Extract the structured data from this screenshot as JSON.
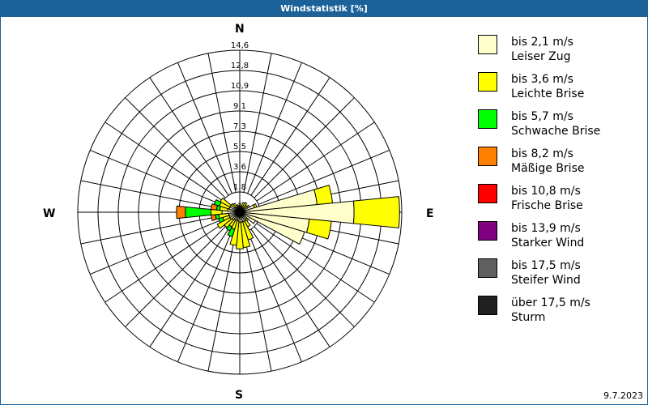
{
  "window": {
    "title": "Windstatistik [%]"
  },
  "footer": {
    "date": "9.7.2023"
  },
  "compass": {
    "n": "N",
    "e": "E",
    "s": "S",
    "w": "W"
  },
  "legend": [
    {
      "range": "bis 2,1 m/s",
      "name": "Leiser Zug",
      "color": "#ffffcc"
    },
    {
      "range": "bis 3,6 m/s",
      "name": "Leichte Brise",
      "color": "#ffff00"
    },
    {
      "range": "bis 5,7 m/s",
      "name": "Schwache Brise",
      "color": "#00ff00"
    },
    {
      "range": "bis 8,2 m/s",
      "name": "Mäßige Brise",
      "color": "#ff8000"
    },
    {
      "range": "bis 10,8 m/s",
      "name": "Frische Brise",
      "color": "#ff0000"
    },
    {
      "range": "bis 13,9 m/s",
      "name": "Starker Wind",
      "color": "#800080"
    },
    {
      "range": "bis 17,5 m/s",
      "name": "Steifer Wind",
      "color": "#606060"
    },
    {
      "range": "über 17,5 m/s",
      "name": "Sturm",
      "color": "#202020"
    }
  ],
  "chart_data": {
    "type": "wind-rose",
    "title": "Windstatistik [%]",
    "unit": "%",
    "ring_labels": [
      "1,8",
      "3,6",
      "5,5",
      "7,3",
      "9,1",
      "10,9",
      "12,8",
      "14,6"
    ],
    "rmax": 14.6,
    "directions_deg_step": 11.25,
    "series_names": [
      "bis 2,1 m/s",
      "bis 3,6 m/s",
      "bis 5,7 m/s",
      "bis 8,2 m/s",
      "bis 10,8 m/s",
      "bis 13,9 m/s",
      "bis 17,5 m/s",
      "über 17,5 m/s"
    ],
    "sectors": [
      {
        "dir": 0,
        "cum": [
          0.6,
          0.8
        ]
      },
      {
        "dir": 11.25,
        "cum": [
          0.4,
          0.6
        ]
      },
      {
        "dir": 22.5,
        "cum": [
          0.5,
          0.9
        ]
      },
      {
        "dir": 33.75,
        "cum": [
          0.4,
          1.0
        ]
      },
      {
        "dir": 45,
        "cum": [
          0.5,
          0.8
        ]
      },
      {
        "dir": 56.25,
        "cum": [
          0.8,
          1.0
        ]
      },
      {
        "dir": 67.5,
        "cum": [
          1.4,
          1.6
        ]
      },
      {
        "dir": 78.75,
        "cum": [
          7.0,
          8.4
        ]
      },
      {
        "dir": 90,
        "cum": [
          10.3,
          14.4
        ]
      },
      {
        "dir": 101.25,
        "cum": [
          6.3,
          8.3
        ]
      },
      {
        "dir": 112.5,
        "cum": [
          6.1,
          6.1
        ]
      },
      {
        "dir": 123.75,
        "cum": [
          1.6,
          1.6
        ]
      },
      {
        "dir": 135,
        "cum": [
          0.8,
          1.0
        ]
      },
      {
        "dir": 146.25,
        "cum": [
          0.9,
          1.5
        ]
      },
      {
        "dir": 157.5,
        "cum": [
          0.9,
          2.6
        ]
      },
      {
        "dir": 168.75,
        "cum": [
          0.9,
          3.2
        ]
      },
      {
        "dir": 180,
        "cum": [
          0.9,
          3.3
        ]
      },
      {
        "dir": 191.25,
        "cum": [
          0.8,
          3.0
        ]
      },
      {
        "dir": 202.5,
        "cum": [
          0.8,
          1.6,
          2.3
        ]
      },
      {
        "dir": 213.75,
        "cum": [
          0.8,
          1.5,
          1.9
        ]
      },
      {
        "dir": 225,
        "cum": [
          0.9,
          1.8
        ]
      },
      {
        "dir": 236.25,
        "cum": [
          1.0,
          2.3
        ]
      },
      {
        "dir": 247.5,
        "cum": [
          1.0,
          1.6,
          2.0
        ]
      },
      {
        "dir": 258.75,
        "cum": [
          1.0,
          1.9,
          2.2,
          2.6
        ]
      },
      {
        "dir": 270,
        "cum": [
          1.6,
          2.6,
          4.9,
          5.7
        ]
      },
      {
        "dir": 281.25,
        "cum": [
          1.1,
          1.8,
          2.1,
          2.6
        ]
      },
      {
        "dir": 292.5,
        "cum": [
          1.0,
          1.9,
          2.4
        ]
      },
      {
        "dir": 303.75,
        "cum": [
          1.0,
          2.0
        ]
      },
      {
        "dir": 315,
        "cum": [
          0.6,
          1.0
        ]
      },
      {
        "dir": 326.25,
        "cum": [
          0.5,
          0.9
        ]
      },
      {
        "dir": 337.5,
        "cum": [
          0.4,
          0.7
        ]
      },
      {
        "dir": 348.75,
        "cum": [
          0.5,
          0.6
        ]
      }
    ]
  }
}
